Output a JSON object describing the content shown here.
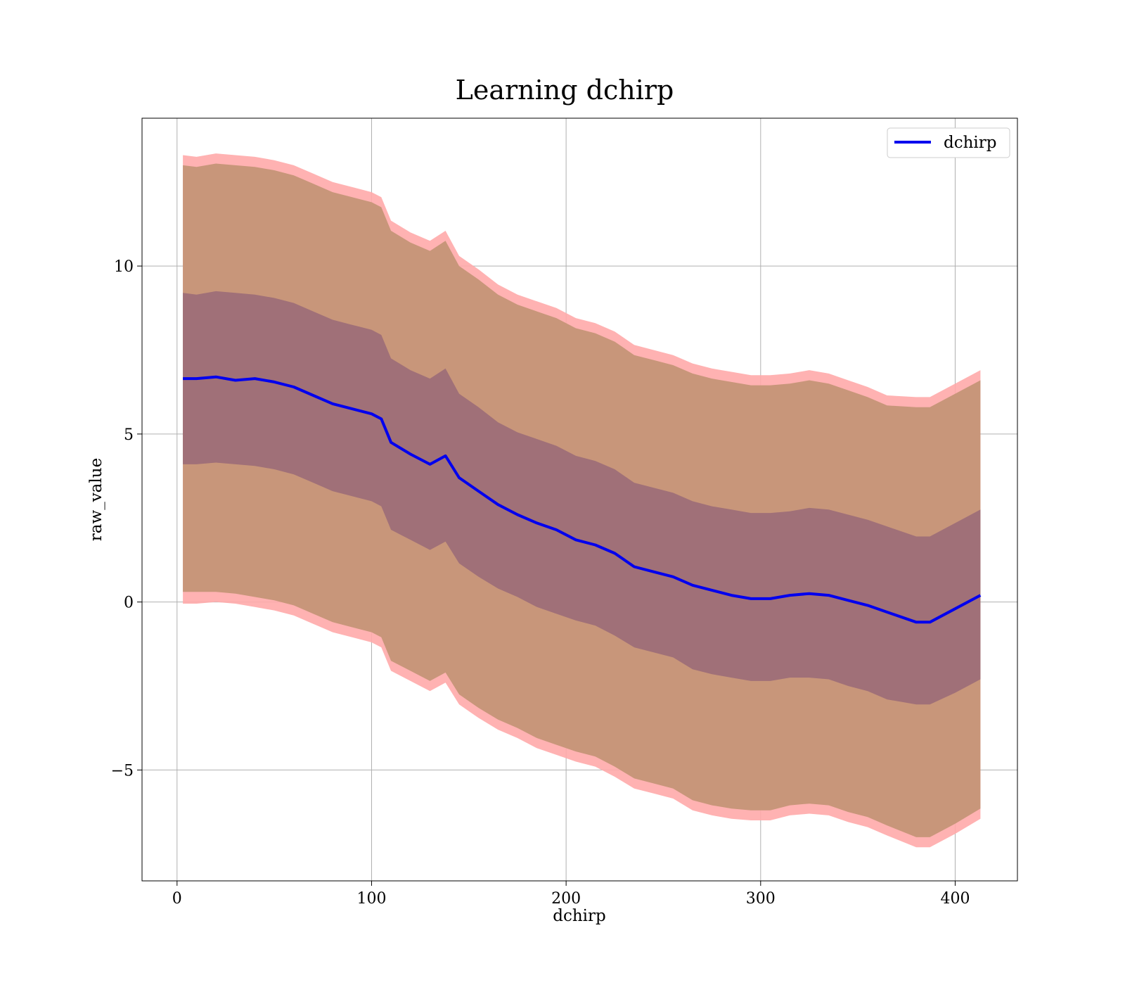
{
  "chart_data": {
    "type": "line",
    "title": "Learning dchirp",
    "xlabel": "dchirp",
    "ylabel": "raw_value",
    "xlim": [
      -18,
      432
    ],
    "ylim": [
      -8.3,
      14.4
    ],
    "xticks": [
      0,
      100,
      200,
      300,
      400
    ],
    "yticks": [
      -5,
      0,
      5,
      10
    ],
    "xtick_labels": [
      "0",
      "100",
      "200",
      "300",
      "400"
    ],
    "ytick_labels": [
      "−5",
      "0",
      "5",
      "10"
    ],
    "grid": true,
    "legend": {
      "position": "top-right",
      "entries": [
        "dchirp"
      ]
    },
    "colors": {
      "line": "#0000ee",
      "outer_band": "#ffaaaa",
      "middle_band": "#c8967a",
      "inner_band": "#a07078"
    },
    "x": [
      3,
      10,
      20,
      30,
      40,
      50,
      60,
      70,
      80,
      90,
      100,
      105,
      110,
      120,
      130,
      138,
      145,
      155,
      165,
      175,
      185,
      195,
      205,
      215,
      225,
      235,
      245,
      255,
      265,
      275,
      285,
      295,
      305,
      315,
      325,
      335,
      345,
      355,
      365,
      380,
      387,
      400,
      413
    ],
    "series": [
      {
        "name": "dchirp",
        "values": [
          6.65,
          6.65,
          6.7,
          6.6,
          6.65,
          6.55,
          6.4,
          6.15,
          5.9,
          5.75,
          5.6,
          5.45,
          4.75,
          4.4,
          4.1,
          4.35,
          3.7,
          3.3,
          2.9,
          2.6,
          2.35,
          2.15,
          1.85,
          1.7,
          1.45,
          1.05,
          0.9,
          0.75,
          0.5,
          0.35,
          0.2,
          0.1,
          0.1,
          0.2,
          0.25,
          0.2,
          0.05,
          -0.1,
          -0.3,
          -0.6,
          -0.6,
          -0.2,
          0.2
        ]
      }
    ],
    "bands": [
      {
        "lower": [
          -0.05,
          -0.05,
          0.0,
          -0.05,
          -0.15,
          -0.25,
          -0.4,
          -0.65,
          -0.9,
          -1.05,
          -1.2,
          -1.35,
          -2.05,
          -2.35,
          -2.65,
          -2.4,
          -3.05,
          -3.45,
          -3.8,
          -4.05,
          -4.35,
          -4.55,
          -4.75,
          -4.9,
          -5.2,
          -5.55,
          -5.7,
          -5.85,
          -6.2,
          -6.35,
          -6.45,
          -6.5,
          -6.5,
          -6.35,
          -6.3,
          -6.35,
          -6.55,
          -6.7,
          -6.95,
          -7.3,
          -7.3,
          -6.9,
          -6.45
        ],
        "upper": [
          13.3,
          13.25,
          13.35,
          13.3,
          13.25,
          13.15,
          13.0,
          12.75,
          12.5,
          12.35,
          12.2,
          12.05,
          11.35,
          11.0,
          10.75,
          11.05,
          10.3,
          9.9,
          9.45,
          9.15,
          8.95,
          8.75,
          8.45,
          8.3,
          8.05,
          7.65,
          7.5,
          7.35,
          7.1,
          6.95,
          6.85,
          6.75,
          6.75,
          6.8,
          6.9,
          6.8,
          6.6,
          6.4,
          6.15,
          6.1,
          6.1,
          6.5,
          6.9
        ]
      },
      {
        "lower": [
          0.3,
          0.3,
          0.3,
          0.25,
          0.15,
          0.05,
          -0.1,
          -0.35,
          -0.6,
          -0.75,
          -0.9,
          -1.05,
          -1.75,
          -2.05,
          -2.35,
          -2.1,
          -2.75,
          -3.15,
          -3.5,
          -3.75,
          -4.05,
          -4.25,
          -4.45,
          -4.6,
          -4.9,
          -5.25,
          -5.4,
          -5.55,
          -5.9,
          -6.05,
          -6.15,
          -6.2,
          -6.2,
          -6.05,
          -6.0,
          -6.05,
          -6.25,
          -6.4,
          -6.65,
          -7.0,
          -7.0,
          -6.6,
          -6.15
        ],
        "upper": [
          13.0,
          12.95,
          13.05,
          13.0,
          12.95,
          12.85,
          12.7,
          12.45,
          12.2,
          12.05,
          11.9,
          11.75,
          11.05,
          10.7,
          10.45,
          10.75,
          10.0,
          9.6,
          9.15,
          8.85,
          8.65,
          8.45,
          8.15,
          8.0,
          7.75,
          7.35,
          7.2,
          7.05,
          6.8,
          6.65,
          6.55,
          6.45,
          6.45,
          6.5,
          6.6,
          6.5,
          6.3,
          6.1,
          5.85,
          5.8,
          5.8,
          6.2,
          6.6
        ]
      },
      {
        "lower": [
          4.1,
          4.1,
          4.15,
          4.1,
          4.05,
          3.95,
          3.8,
          3.55,
          3.3,
          3.15,
          3.0,
          2.85,
          2.15,
          1.85,
          1.55,
          1.8,
          1.15,
          0.75,
          0.4,
          0.15,
          -0.15,
          -0.35,
          -0.55,
          -0.7,
          -1.0,
          -1.35,
          -1.5,
          -1.65,
          -2.0,
          -2.15,
          -2.25,
          -2.35,
          -2.35,
          -2.25,
          -2.25,
          -2.3,
          -2.5,
          -2.65,
          -2.9,
          -3.05,
          -3.05,
          -2.7,
          -2.3
        ],
        "upper": [
          9.2,
          9.15,
          9.25,
          9.2,
          9.15,
          9.05,
          8.9,
          8.65,
          8.4,
          8.25,
          8.1,
          7.95,
          7.25,
          6.9,
          6.65,
          6.95,
          6.2,
          5.8,
          5.35,
          5.05,
          4.85,
          4.65,
          4.35,
          4.2,
          3.95,
          3.55,
          3.4,
          3.25,
          3.0,
          2.85,
          2.75,
          2.65,
          2.65,
          2.7,
          2.8,
          2.75,
          2.6,
          2.45,
          2.25,
          1.95,
          1.95,
          2.35,
          2.75
        ]
      }
    ]
  }
}
